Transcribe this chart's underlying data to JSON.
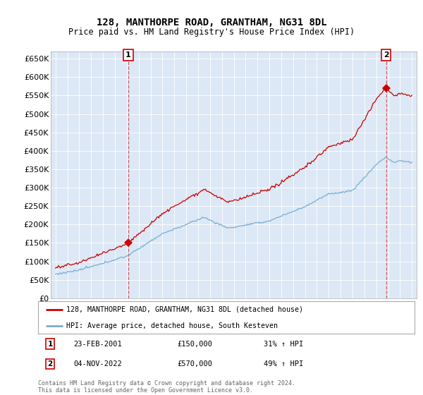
{
  "title": "128, MANTHORPE ROAD, GRANTHAM, NG31 8DL",
  "subtitle": "Price paid vs. HM Land Registry's House Price Index (HPI)",
  "background_color": "#dce8f5",
  "outer_bg_color": "#ffffff",
  "red_color": "#cc0000",
  "blue_color": "#7aadd4",
  "yticks": [
    0,
    50000,
    100000,
    150000,
    200000,
    250000,
    300000,
    350000,
    400000,
    450000,
    500000,
    550000,
    600000,
    650000
  ],
  "legend_line1": "128, MANTHORPE ROAD, GRANTHAM, NG31 8DL (detached house)",
  "legend_line2": "HPI: Average price, detached house, South Kesteven",
  "annotation1_x_label": "23-FEB-2001",
  "annotation1_price": "£150,000",
  "annotation1_hpi": "31% ↑ HPI",
  "annotation2_x_label": "04-NOV-2022",
  "annotation2_price": "£570,000",
  "annotation2_hpi": "49% ↑ HPI",
  "footer": "Contains HM Land Registry data © Crown copyright and database right 2024.\nThis data is licensed under the Open Government Licence v3.0.",
  "sale1_year": 2001.12,
  "sale1_price": 150000,
  "sale2_year": 2022.83,
  "sale2_price": 570000
}
